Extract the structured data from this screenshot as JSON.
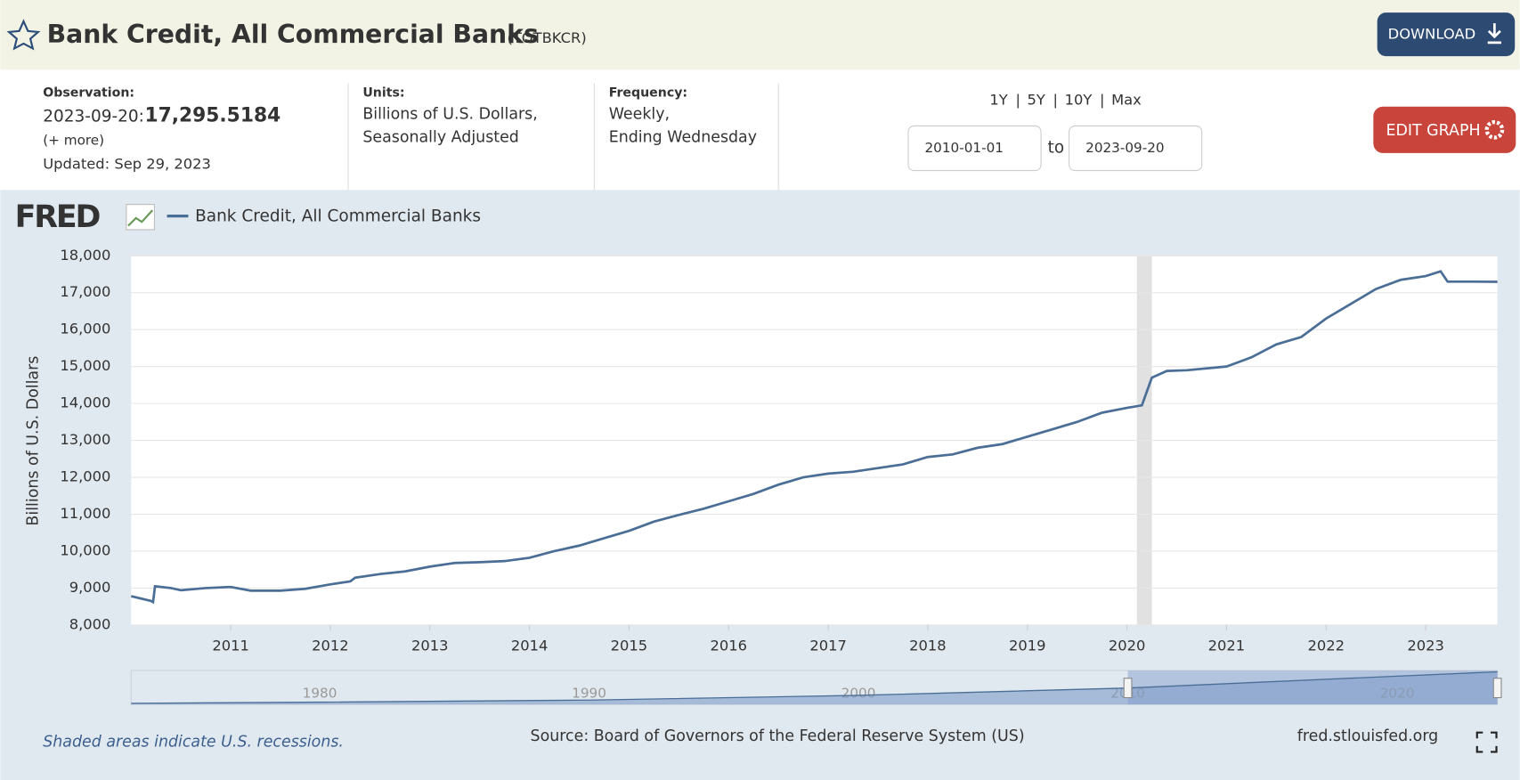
{
  "header": {
    "title": "Bank Credit, All Commercial Banks",
    "code": "(TOTBKCR)",
    "download": "DOWNLOAD"
  },
  "info": {
    "observation_label": "Observation:",
    "observation_date": "2023-09-20:",
    "observation_value": "17,295.5184",
    "more": "(+ more)",
    "updated": "Updated: Sep 29, 2023",
    "units_label": "Units:",
    "units": [
      "Billions of U.S. Dollars,",
      "Seasonally Adjusted"
    ],
    "frequency_label": "Frequency:",
    "frequency": [
      "Weekly,",
      "Ending Wednesday"
    ],
    "range_links": [
      "1Y",
      "5Y",
      "10Y",
      "Max"
    ],
    "separator": "|",
    "start_date": "2010-01-01",
    "to": "to",
    "end_date": "2023-09-20",
    "edit": "EDIT GRAPH"
  },
  "chart_data": {
    "type": "line",
    "logo": "FRED",
    "ylabel": "Billions of U.S. Dollars",
    "series": [
      {
        "name": "Bank Credit, All Commercial Banks",
        "color": "#4b6e97",
        "values": [
          8780,
          8650,
          8620,
          9050,
          9000,
          8940,
          9000,
          9030,
          8930,
          8930,
          8980,
          9100,
          9180,
          9280,
          9380,
          9450,
          9580,
          9680,
          9700,
          9730,
          9820,
          10000,
          10150,
          10350,
          10550,
          10800,
          10980,
          11150,
          11350,
          11550,
          11800,
          12000,
          12100,
          12150,
          12250,
          12350,
          12550,
          12620,
          12800,
          12900,
          13100,
          13300,
          13500,
          13750,
          13880,
          13950,
          14700,
          14880,
          14900,
          15000,
          15250,
          15600,
          15800,
          16300,
          16700,
          17100,
          17350,
          17450,
          17580,
          17300,
          17300,
          17295.5184
        ]
      }
    ],
    "x": [
      2010.0,
      2010.2,
      2010.22,
      2010.24,
      2010.4,
      2010.5,
      2010.75,
      2011.0,
      2011.2,
      2011.5,
      2011.75,
      2012.0,
      2012.2,
      2012.25,
      2012.5,
      2012.75,
      2013.0,
      2013.25,
      2013.5,
      2013.75,
      2014.0,
      2014.25,
      2014.5,
      2014.75,
      2015.0,
      2015.25,
      2015.5,
      2015.75,
      2016.0,
      2016.25,
      2016.5,
      2016.75,
      2017.0,
      2017.25,
      2017.5,
      2017.75,
      2018.0,
      2018.25,
      2018.5,
      2018.75,
      2019.0,
      2019.25,
      2019.5,
      2019.75,
      2020.0,
      2020.15,
      2020.25,
      2020.4,
      2020.6,
      2021.0,
      2021.25,
      2021.5,
      2021.75,
      2022.0,
      2022.25,
      2022.5,
      2022.75,
      2023.0,
      2023.15,
      2023.22,
      2023.5,
      2023.72
    ],
    "xlim": [
      2010.0,
      2023.72
    ],
    "xticks": [
      2011,
      2012,
      2013,
      2014,
      2015,
      2016,
      2017,
      2018,
      2019,
      2020,
      2021,
      2022,
      2023
    ],
    "ylim": [
      8000,
      18000
    ],
    "yticks": [
      {
        "value": 8000,
        "label": "8,000"
      },
      {
        "value": 9000,
        "label": "9,000"
      },
      {
        "value": 10000,
        "label": "10,000"
      },
      {
        "value": 11000,
        "label": "11,000"
      },
      {
        "value": 12000,
        "label": "12,000"
      },
      {
        "value": 13000,
        "label": "13,000"
      },
      {
        "value": 14000,
        "label": "14,000"
      },
      {
        "value": 15000,
        "label": "15,000"
      },
      {
        "value": 16000,
        "label": "16,000"
      },
      {
        "value": 17000,
        "label": "17,000"
      },
      {
        "value": 18000,
        "label": "18,000"
      }
    ],
    "grid": true,
    "recessions": [
      [
        2020.1,
        2020.25
      ]
    ],
    "navigator": {
      "x": [
        1973,
        1980,
        1990,
        2000,
        2010,
        2020,
        2023.72
      ],
      "values": [
        600,
        1200,
        2300,
        4800,
        8700,
        15000,
        17300
      ],
      "xlim": [
        1973,
        2023.72
      ],
      "ylim": [
        0,
        18000
      ],
      "xticks": [
        1980,
        1990,
        2000,
        2010,
        2020
      ],
      "selection": [
        2010.0,
        2023.72
      ]
    },
    "note": "Shaded areas indicate U.S. recessions.",
    "source": "Source: Board of Governors of the Federal Reserve System (US)",
    "site": "fred.stlouisfed.org"
  }
}
